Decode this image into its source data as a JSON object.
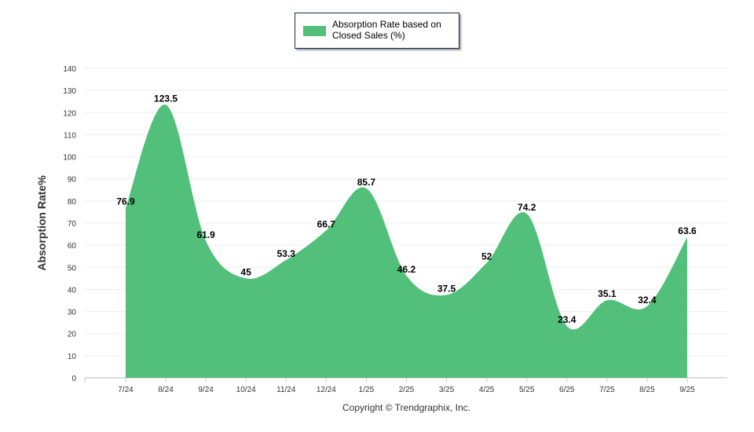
{
  "chart_data": {
    "type": "area",
    "title": "",
    "ylabel": "Absorption Rate%",
    "xlabel": "",
    "legend": {
      "label": "Absorption Rate based on Closed Sales (%)",
      "placement": "top-center"
    },
    "categories": [
      "7/24",
      "8/24",
      "9/24",
      "10/24",
      "11/24",
      "12/24",
      "1/25",
      "2/25",
      "3/25",
      "4/25",
      "5/25",
      "6/25",
      "7/25",
      "8/25",
      "9/25"
    ],
    "values": [
      76.9,
      123.5,
      61.9,
      45,
      53.3,
      66.7,
      85.7,
      46.2,
      37.5,
      52,
      74.2,
      23.4,
      35.1,
      32.4,
      63.6
    ],
    "ylim": [
      0,
      140
    ],
    "yticks": [
      0,
      10,
      20,
      30,
      40,
      50,
      60,
      70,
      80,
      90,
      100,
      110,
      120,
      130,
      140
    ],
    "grid": true,
    "color": "#52c07a"
  },
  "footer": {
    "copyright": "Copyright © Trendgraphix, Inc."
  }
}
